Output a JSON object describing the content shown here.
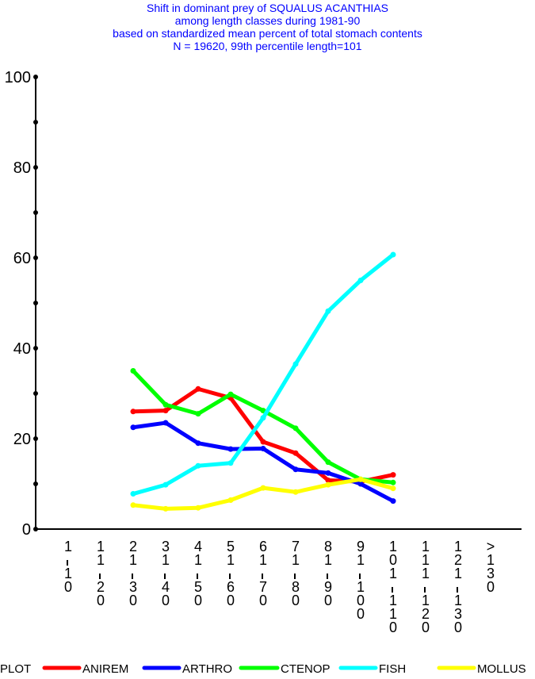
{
  "chart_data": {
    "type": "line",
    "title_lines": [
      "Shift in dominant prey of SQUALUS ACANTHIAS",
      "among length classes during 1981-90",
      "based on standardized mean percent of  total stomach contents",
      "N = 19620, 99th percentile  length=101"
    ],
    "ylim": [
      0,
      100
    ],
    "yticks": [
      "0",
      "20",
      "40",
      "60",
      "80",
      "100"
    ],
    "categories": [
      "1-10",
      "11-20",
      "21-30",
      "31-40",
      "41-50",
      "51-60",
      "61-70",
      "71-80",
      "81-90",
      "91-100",
      "101-110",
      "111-120",
      "121-130",
      ">130"
    ],
    "legend_prefix": "PLOT",
    "series": [
      {
        "name": "ANIREM",
        "color": "#ff0000",
        "values": [
          null,
          null,
          26,
          26.2,
          31,
          29,
          19.3,
          16.8,
          10.8,
          10.5,
          12,
          null,
          null,
          null
        ]
      },
      {
        "name": "ARTHRO",
        "color": "#0000ff",
        "values": [
          null,
          null,
          22.5,
          23.5,
          19,
          17.7,
          17.8,
          13.2,
          12.4,
          10,
          6.2,
          null,
          null,
          null
        ]
      },
      {
        "name": "CTENOP",
        "color": "#00ff00",
        "values": [
          null,
          null,
          35,
          27.5,
          25.5,
          29.8,
          26.2,
          22.3,
          14.8,
          11,
          10.3,
          null,
          null,
          null
        ]
      },
      {
        "name": "FISH",
        "color": "#00ffff",
        "values": [
          null,
          null,
          7.8,
          9.8,
          14,
          14.6,
          24.6,
          36.5,
          48.2,
          55,
          60.7,
          null,
          null,
          null
        ]
      },
      {
        "name": "MOLLUS",
        "color": "#ffff00",
        "values": [
          null,
          null,
          5.3,
          4.5,
          4.7,
          6.4,
          9.1,
          8.2,
          9.8,
          11,
          9,
          null,
          null,
          null
        ]
      }
    ]
  }
}
